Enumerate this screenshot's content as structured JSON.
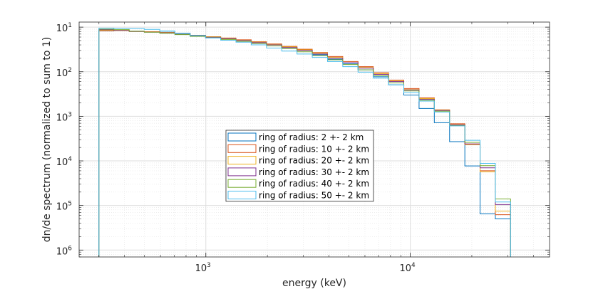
{
  "chart_data": {
    "type": "line",
    "step": true,
    "title": "",
    "xlabel": "energy (keV)",
    "ylabel": "dn/de spectrum (normalized to sum to 1)",
    "xscale": "log",
    "yscale": "log",
    "xlim": [
      240,
      48000
    ],
    "ylim": [
      7e-07,
      0.13
    ],
    "grid": "on (major and minor)",
    "legend_position": "center-left",
    "x_ticks": [
      {
        "base": "10",
        "exp": "3",
        "value": 1000
      },
      {
        "base": "10",
        "exp": "4",
        "value": 10000
      }
    ],
    "y_ticks": [
      {
        "base": "10",
        "exp": "1",
        "value": 0.1
      },
      {
        "base": "10",
        "exp": "2",
        "value": 0.01
      },
      {
        "base": "10",
        "exp": "3",
        "value": 0.001
      },
      {
        "base": "10",
        "exp": "4",
        "value": 0.0001
      },
      {
        "base": "10",
        "exp": "5",
        "value": 1e-05
      },
      {
        "base": "10",
        "exp": "6",
        "value": 1e-06
      }
    ],
    "bin_edges": [
      300,
      355,
      422,
      500,
      595,
      706,
      838,
      996,
      1182,
      1404,
      1667,
      1980,
      2351,
      2792,
      3315,
      3937,
      4675,
      5552,
      6593,
      7828,
      9296,
      11040,
      13110,
      15570,
      18490,
      21950,
      26070,
      30950
    ],
    "series": [
      {
        "name": "ring of radius: 2 +- 2 km",
        "color": "#0072bd",
        "values": [
          0.082,
          0.084,
          0.081,
          0.079,
          0.077,
          0.073,
          0.066,
          0.061,
          0.056,
          0.051,
          0.045,
          0.04,
          0.035,
          0.03,
          0.024,
          0.019,
          0.015,
          0.011,
          0.0077,
          0.0051,
          0.003,
          0.0015,
          0.00072,
          0.00027,
          7.7e-05,
          6.5e-06,
          5e-06
        ]
      },
      {
        "name": "ring of radius: 10 +- 2 km",
        "color": "#d95319",
        "values": [
          0.083,
          0.084,
          0.081,
          0.079,
          0.076,
          0.071,
          0.065,
          0.061,
          0.057,
          0.052,
          0.047,
          0.042,
          0.037,
          0.032,
          0.027,
          0.022,
          0.017,
          0.013,
          0.0095,
          0.0065,
          0.0042,
          0.0026,
          0.0014,
          0.00068,
          0.00024,
          6e-05,
          6.2e-06
        ]
      },
      {
        "name": "ring of radius: 20 +- 2 km",
        "color": "#edb120",
        "values": [
          0.086,
          0.085,
          0.08,
          0.078,
          0.075,
          0.07,
          0.064,
          0.06,
          0.056,
          0.051,
          0.046,
          0.041,
          0.036,
          0.031,
          0.026,
          0.021,
          0.016,
          0.0125,
          0.009,
          0.0062,
          0.004,
          0.0025,
          0.00138,
          0.00065,
          0.00023,
          5.7e-05,
          7.5e-06
        ]
      },
      {
        "name": "ring of radius: 30 +- 2 km",
        "color": "#7e2f8e",
        "values": [
          0.088,
          0.086,
          0.08,
          0.077,
          0.074,
          0.069,
          0.063,
          0.059,
          0.055,
          0.05,
          0.045,
          0.04,
          0.035,
          0.03,
          0.025,
          0.02,
          0.016,
          0.012,
          0.0087,
          0.006,
          0.0039,
          0.0024,
          0.00135,
          0.00064,
          0.00024,
          7e-05,
          1.05e-05
        ]
      },
      {
        "name": "ring of radius: 40 +- 2 km",
        "color": "#77ac30",
        "values": [
          0.09,
          0.088,
          0.081,
          0.077,
          0.073,
          0.068,
          0.062,
          0.058,
          0.053,
          0.048,
          0.043,
          0.038,
          0.033,
          0.028,
          0.023,
          0.0185,
          0.0145,
          0.011,
          0.0081,
          0.0056,
          0.0037,
          0.0023,
          0.0013,
          0.00062,
          0.00026,
          7.8e-05,
          1.4e-05
        ]
      },
      {
        "name": "ring of radius: 50 +- 2 km",
        "color": "#4dbeee",
        "values": [
          0.095,
          0.093,
          0.093,
          0.089,
          0.082,
          0.072,
          0.064,
          0.057,
          0.051,
          0.046,
          0.04,
          0.034,
          0.029,
          0.025,
          0.021,
          0.017,
          0.013,
          0.0098,
          0.0072,
          0.0051,
          0.0034,
          0.0022,
          0.00125,
          0.00061,
          0.00029,
          8.8e-05,
          1.2e-05
        ]
      }
    ]
  }
}
